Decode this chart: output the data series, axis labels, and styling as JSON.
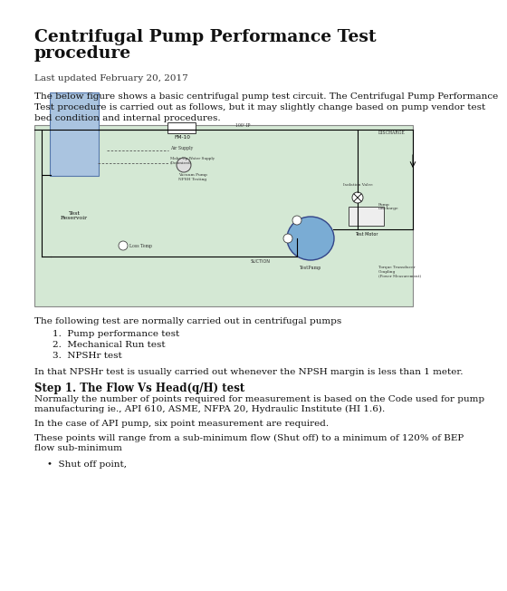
{
  "title_line1": "Centrifugal Pump Performance Test",
  "title_line2": "procedure",
  "last_updated": "Last updated February 20, 2017",
  "intro_line1": "The below figure shows a basic centrifugal pump test circuit. The Centrifugal Pump Performance",
  "intro_line2": "Test procedure is carried out as follows, but it may slightly change based on pump vendor test",
  "intro_line3": "bed condition and internal procedures.",
  "diagram_bg": "#d4e8d4",
  "diagram_border": "#888888",
  "reservoir_color": "#aac4e0",
  "reservoir_border": "#5577aa",
  "pump_color": "#7aacd4",
  "pump_border": "#334488",
  "following_tests_intro": "The following test are normally carried out in centrifugal pumps",
  "numbered_list": [
    "Pump performance test",
    "Mechanical Run test",
    "NPSHr test"
  ],
  "npsh_note": "In that NPSHr test is usually carried out whenever the NPSH margin is less than 1 meter.",
  "step1_title": "Step 1. The Flow Vs Head(q/H) test",
  "step1_para1a": "Normally the number of points required for measurement is based on the Code used for pump",
  "step1_para1b": "manufacturing ie., API 610, ASME, NFPA 20, Hydraulic Institute (HI 1.6).",
  "step1_para2": "In the case of API pump, six point measurement are required.",
  "step1_para3a": "These points will range from a sub-minimum flow (Shut off) to a minimum of 120% of BEP",
  "step1_para3b": "flow sub-minimum",
  "bullet_item": "Shut off point,",
  "bg_color": "#ffffff",
  "text_color": "#111111",
  "title_fontsize": 13.5,
  "body_fontsize": 7.5,
  "step_fontsize": 8.5
}
